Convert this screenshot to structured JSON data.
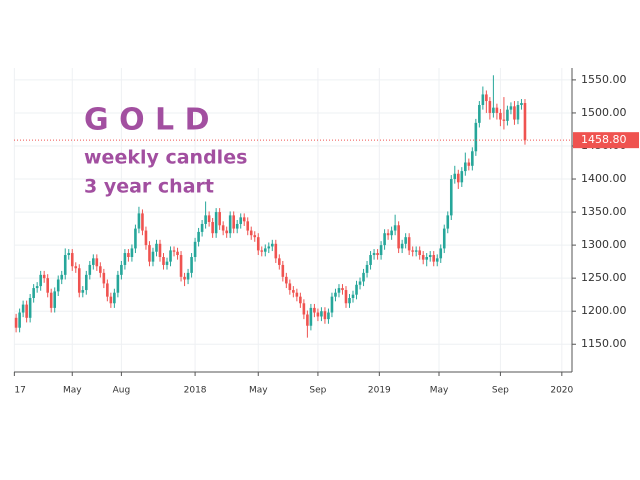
{
  "chart_data": {
    "type": "candlestick",
    "annotations": [
      "G O L D",
      "weekly candles",
      "3 year chart"
    ],
    "up_color": "#26a69a",
    "down_color": "#ef5350",
    "grid": true,
    "xlim": [
      -0.6,
      158.4
    ],
    "xticks": [
      {
        "value": -0.5,
        "label": "17"
      },
      {
        "value": 16,
        "label": "May"
      },
      {
        "value": 30,
        "label": "Aug"
      },
      {
        "value": 51,
        "label": "2018"
      },
      {
        "value": 69,
        "label": "May"
      },
      {
        "value": 86,
        "label": "Sep"
      },
      {
        "value": 103.5,
        "label": "2019"
      },
      {
        "value": 120.5,
        "label": "May"
      },
      {
        "value": 138,
        "label": "Sep"
      },
      {
        "value": 155.5,
        "label": "2020"
      }
    ],
    "ylim": [
      1108,
      1568
    ],
    "yticks": [
      {
        "value": 1150,
        "label": "1150.00"
      },
      {
        "value": 1200,
        "label": "1200.00"
      },
      {
        "value": 1250,
        "label": "1250.00"
      },
      {
        "value": 1300,
        "label": "1300.00"
      },
      {
        "value": 1350,
        "label": "1350.00"
      },
      {
        "value": 1400,
        "label": "1400.00"
      },
      {
        "value": 1450,
        "label": "1450.00"
      },
      {
        "value": 1500,
        "label": "1500.00"
      },
      {
        "value": 1550,
        "label": "1550.00"
      }
    ],
    "last_price": {
      "value": 1458.8,
      "label": "1458.80"
    },
    "open": [
      1190,
      1175,
      1198,
      1210,
      1190,
      1220,
      1235,
      1238,
      1255,
      1250,
      1228,
      1205,
      1230,
      1248,
      1255,
      1285,
      1288,
      1268,
      1265,
      1228,
      1232,
      1255,
      1270,
      1280,
      1268,
      1258,
      1242,
      1222,
      1212,
      1228,
      1255,
      1270,
      1288,
      1282,
      1295,
      1325,
      1348,
      1322,
      1300,
      1275,
      1290,
      1302,
      1282,
      1270,
      1275,
      1292,
      1290,
      1285,
      1252,
      1248,
      1258,
      1282,
      1305,
      1320,
      1332,
      1345,
      1335,
      1318,
      1350,
      1330,
      1322,
      1318,
      1345,
      1325,
      1332,
      1342,
      1336,
      1322,
      1315,
      1312,
      1292,
      1290,
      1295,
      1298,
      1302,
      1280,
      1270,
      1252,
      1242,
      1232,
      1228,
      1222,
      1212,
      1195,
      1178,
      1205,
      1198,
      1192,
      1200,
      1188,
      1198,
      1222,
      1228,
      1235,
      1232,
      1212,
      1220,
      1225,
      1240,
      1245,
      1258,
      1270,
      1285,
      1288,
      1285,
      1300,
      1318,
      1315,
      1322,
      1330,
      1295,
      1302,
      1312,
      1292,
      1290,
      1292,
      1285,
      1278,
      1282,
      1285,
      1275,
      1280,
      1295,
      1325,
      1345,
      1400,
      1408,
      1395,
      1412,
      1425,
      1420,
      1442,
      1485,
      1512,
      1528,
      1518,
      1500,
      1508,
      1500,
      1490,
      1488,
      1505,
      1510,
      1490,
      1512,
      1515
    ],
    "high": [
      1196,
      1204,
      1216,
      1216,
      1226,
      1241,
      1244,
      1261,
      1261,
      1256,
      1234,
      1236,
      1254,
      1261,
      1295,
      1294,
      1294,
      1274,
      1271,
      1238,
      1261,
      1276,
      1286,
      1286,
      1274,
      1264,
      1248,
      1228,
      1234,
      1261,
      1276,
      1294,
      1294,
      1301,
      1331,
      1358,
      1354,
      1328,
      1306,
      1296,
      1308,
      1308,
      1288,
      1281,
      1298,
      1298,
      1296,
      1291,
      1258,
      1264,
      1288,
      1311,
      1326,
      1338,
      1366,
      1351,
      1341,
      1356,
      1356,
      1336,
      1328,
      1351,
      1351,
      1338,
      1348,
      1348,
      1342,
      1328,
      1321,
      1318,
      1298,
      1301,
      1304,
      1308,
      1308,
      1286,
      1276,
      1258,
      1248,
      1238,
      1234,
      1228,
      1218,
      1201,
      1211,
      1211,
      1204,
      1206,
      1206,
      1204,
      1228,
      1234,
      1241,
      1241,
      1238,
      1226,
      1231,
      1246,
      1251,
      1264,
      1276,
      1291,
      1294,
      1294,
      1306,
      1324,
      1324,
      1328,
      1346,
      1336,
      1308,
      1318,
      1318,
      1298,
      1298,
      1298,
      1291,
      1288,
      1291,
      1291,
      1286,
      1301,
      1331,
      1351,
      1406,
      1420,
      1414,
      1418,
      1440,
      1431,
      1448,
      1491,
      1518,
      1540,
      1534,
      1524,
      1557,
      1514,
      1506,
      1524,
      1511,
      1516,
      1518,
      1518,
      1521,
      1521
    ],
    "low": [
      1168,
      1168,
      1191,
      1183,
      1183,
      1213,
      1228,
      1231,
      1243,
      1221,
      1198,
      1198,
      1223,
      1241,
      1248,
      1278,
      1261,
      1258,
      1221,
      1221,
      1225,
      1248,
      1263,
      1261,
      1251,
      1235,
      1215,
      1205,
      1205,
      1221,
      1248,
      1263,
      1275,
      1275,
      1288,
      1318,
      1315,
      1293,
      1268,
      1268,
      1283,
      1275,
      1263,
      1263,
      1268,
      1283,
      1278,
      1245,
      1238,
      1241,
      1251,
      1275,
      1298,
      1313,
      1325,
      1328,
      1311,
      1311,
      1323,
      1315,
      1311,
      1311,
      1318,
      1318,
      1325,
      1329,
      1315,
      1308,
      1305,
      1285,
      1283,
      1283,
      1288,
      1291,
      1273,
      1263,
      1245,
      1235,
      1225,
      1221,
      1215,
      1205,
      1188,
      1160,
      1171,
      1191,
      1185,
      1185,
      1181,
      1181,
      1191,
      1215,
      1221,
      1225,
      1205,
      1205,
      1213,
      1218,
      1233,
      1238,
      1251,
      1263,
      1278,
      1278,
      1278,
      1293,
      1308,
      1308,
      1315,
      1288,
      1288,
      1295,
      1285,
      1283,
      1283,
      1278,
      1271,
      1268,
      1275,
      1268,
      1268,
      1273,
      1288,
      1318,
      1338,
      1393,
      1385,
      1388,
      1405,
      1413,
      1413,
      1435,
      1478,
      1505,
      1500,
      1490,
      1493,
      1490,
      1480,
      1475,
      1481,
      1498,
      1482,
      1483,
      1505,
      1452
    ],
    "close": [
      1175,
      1198,
      1210,
      1190,
      1220,
      1235,
      1238,
      1255,
      1250,
      1228,
      1205,
      1230,
      1248,
      1255,
      1285,
      1288,
      1268,
      1265,
      1228,
      1232,
      1255,
      1270,
      1280,
      1268,
      1258,
      1242,
      1222,
      1212,
      1228,
      1255,
      1270,
      1288,
      1282,
      1295,
      1325,
      1348,
      1322,
      1300,
      1275,
      1290,
      1302,
      1282,
      1270,
      1275,
      1292,
      1290,
      1285,
      1252,
      1248,
      1258,
      1282,
      1305,
      1320,
      1332,
      1345,
      1335,
      1318,
      1350,
      1330,
      1322,
      1318,
      1345,
      1325,
      1332,
      1342,
      1336,
      1322,
      1315,
      1312,
      1292,
      1290,
      1295,
      1298,
      1302,
      1280,
      1270,
      1252,
      1242,
      1232,
      1228,
      1222,
      1212,
      1195,
      1178,
      1205,
      1198,
      1192,
      1200,
      1188,
      1198,
      1222,
      1228,
      1235,
      1232,
      1212,
      1220,
      1225,
      1240,
      1245,
      1258,
      1270,
      1285,
      1288,
      1285,
      1300,
      1318,
      1315,
      1322,
      1330,
      1295,
      1302,
      1312,
      1292,
      1290,
      1292,
      1285,
      1278,
      1282,
      1285,
      1275,
      1280,
      1295,
      1325,
      1345,
      1400,
      1408,
      1395,
      1412,
      1425,
      1420,
      1442,
      1485,
      1512,
      1528,
      1518,
      1500,
      1508,
      1500,
      1490,
      1488,
      1505,
      1510,
      1490,
      1512,
      1515,
      1458.8
    ]
  }
}
